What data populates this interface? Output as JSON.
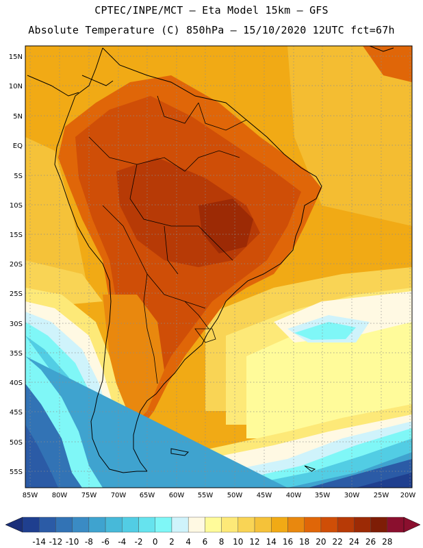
{
  "title_line1": "CPTEC/INPE/MCT —  Eta Model 15km — GFS",
  "title_line2": "Absolute Temperature (C) 850hPa — 15/10/2020 12UTC fct=67h",
  "lat_labels": [
    "15N",
    "10N",
    "5N",
    "EQ",
    "5S",
    "10S",
    "15S",
    "20S",
    "25S",
    "30S",
    "35S",
    "40S",
    "45S",
    "50S",
    "55S"
  ],
  "lon_labels": [
    "85W",
    "80W",
    "75W",
    "70W",
    "65W",
    "60W",
    "55W",
    "50W",
    "45W",
    "40W",
    "35W",
    "30W",
    "25W",
    "20W"
  ],
  "colorbar": {
    "labels": [
      "-14",
      "-12",
      "-10",
      "-8",
      "-6",
      "-4",
      "-2",
      "0",
      "2",
      "4",
      "6",
      "8",
      "10",
      "12",
      "14",
      "16",
      "18",
      "20",
      "22",
      "24",
      "26",
      "28"
    ],
    "colors": [
      "#1f3f8f",
      "#2b5ba6",
      "#3273b5",
      "#3a8bc4",
      "#3fa3cf",
      "#47b9d9",
      "#52cde4",
      "#66e3ee",
      "#7ff7f7",
      "#cff3fb",
      "#fff9e3",
      "#fffb9a",
      "#fde978",
      "#f9d455",
      "#f5c239",
      "#f1aa15",
      "#e9880e",
      "#e06608",
      "#cf4e07",
      "#b73a06",
      "#9c2a05",
      "#7e1d06",
      "#8a0f2e"
    ],
    "under_color": "#1a2f7a",
    "over_color": "#8a0f2e"
  },
  "colors": {
    "ocean_warm": "#f1aa15",
    "land_hot": "#cf4e07",
    "land_warm": "#e06608",
    "cool_band": "#fde978",
    "pale_band": "#fff9e3",
    "cyan_band": "#7ff7f7",
    "cold_band": "#3a8bc4",
    "coldest": "#1f3f8f"
  }
}
